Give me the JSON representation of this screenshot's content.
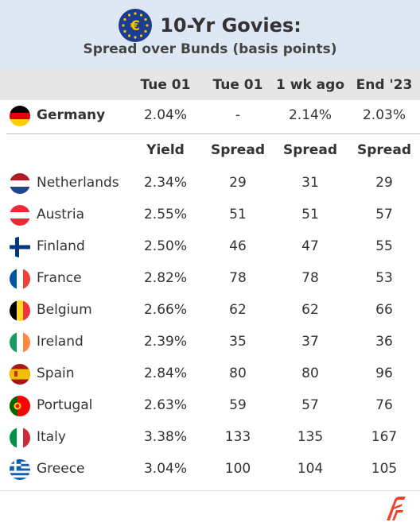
{
  "header": {
    "title": "10-Yr Govies:",
    "subtitle": "Spread over Bunds (basis points)",
    "logo_icon": "euro-stars-icon"
  },
  "columns": [
    "Tue 01",
    "Tue 01",
    "1 wk ago",
    "End '23"
  ],
  "benchmark": {
    "country": "Germany",
    "flag": "germany-flag-icon",
    "values": [
      "2.04%",
      "-",
      "2.14%",
      "2.03%"
    ]
  },
  "subheaders": [
    "Yield",
    "Spread",
    "Spread",
    "Spread"
  ],
  "rows": [
    {
      "country": "Netherlands",
      "flag": "netherlands-flag-icon",
      "yield": "2.34%",
      "spread": "29",
      "wk_ago": "31",
      "end23": "29"
    },
    {
      "country": "Austria",
      "flag": "austria-flag-icon",
      "yield": "2.55%",
      "spread": "51",
      "wk_ago": "51",
      "end23": "57"
    },
    {
      "country": "Finland",
      "flag": "finland-flag-icon",
      "yield": "2.50%",
      "spread": "46",
      "wk_ago": "47",
      "end23": "55"
    },
    {
      "country": "France",
      "flag": "france-flag-icon",
      "yield": "2.82%",
      "spread": "78",
      "wk_ago": "78",
      "end23": "53"
    },
    {
      "country": "Belgium",
      "flag": "belgium-flag-icon",
      "yield": "2.66%",
      "spread": "62",
      "wk_ago": "62",
      "end23": "66"
    },
    {
      "country": "Ireland",
      "flag": "ireland-flag-icon",
      "yield": "2.39%",
      "spread": "35",
      "wk_ago": "37",
      "end23": "36"
    },
    {
      "country": "Spain",
      "flag": "spain-flag-icon",
      "yield": "2.84%",
      "spread": "80",
      "wk_ago": "80",
      "end23": "96"
    },
    {
      "country": "Portugal",
      "flag": "portugal-flag-icon",
      "yield": "2.63%",
      "spread": "59",
      "wk_ago": "57",
      "end23": "76"
    },
    {
      "country": "Italy",
      "flag": "italy-flag-icon",
      "yield": "3.38%",
      "spread": "133",
      "wk_ago": "135",
      "end23": "167"
    },
    {
      "country": "Greece",
      "flag": "greece-flag-icon",
      "yield": "3.04%",
      "spread": "100",
      "wk_ago": "104",
      "end23": "105"
    }
  ],
  "colors": {
    "header_bg": "#dde8f4",
    "column_header_bg": "#e6e6e6",
    "brand_red": "#e8452c",
    "eu_blue": "#1c3d8f",
    "eu_gold": "#f7c600"
  },
  "footer": {
    "brand_icon": "brand-logo-icon"
  }
}
